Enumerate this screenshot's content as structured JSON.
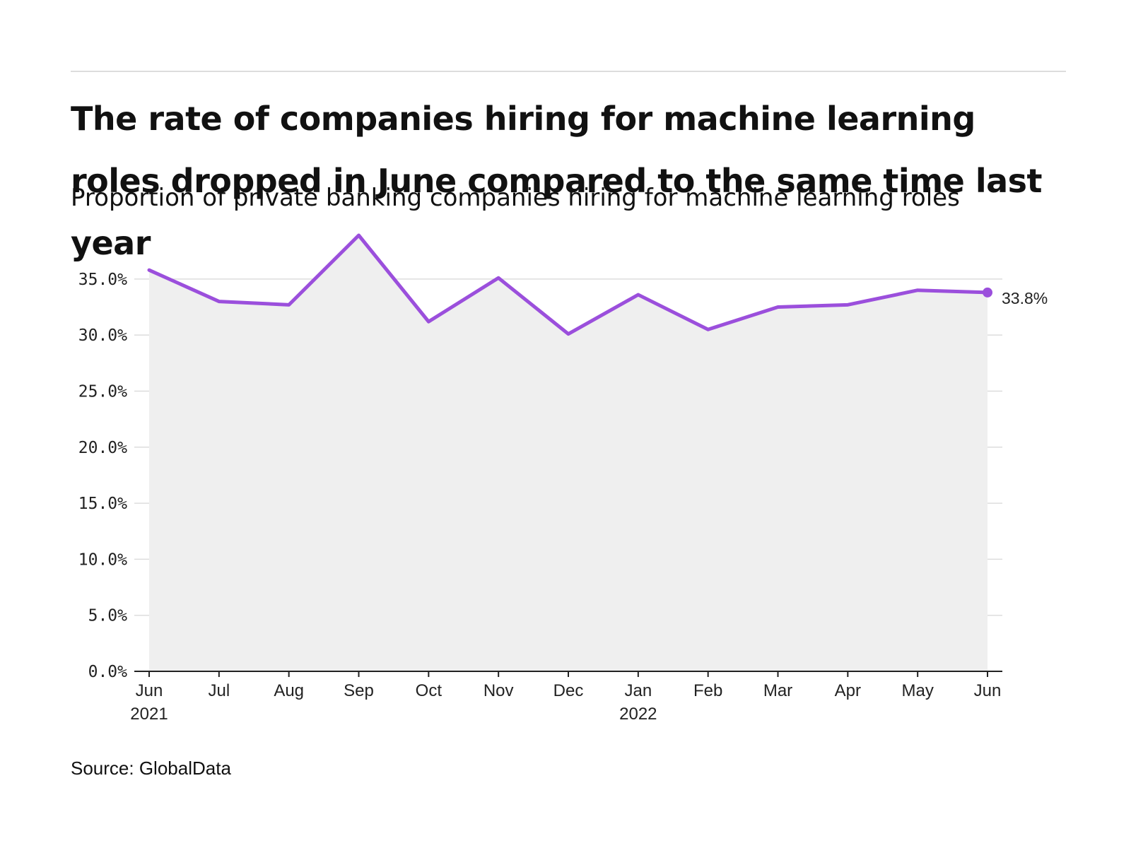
{
  "header": {
    "title": "The rate of companies hiring for machine learning roles dropped in June compared to the same time last year",
    "subtitle": "Proportion of private banking companies hiring for machine learning roles"
  },
  "footer": {
    "source": "Source: GlobalData"
  },
  "colors": {
    "line": "#9b4fdc",
    "area": "#efefef",
    "grid": "#dddddd",
    "axis": "#222222"
  },
  "chart_data": {
    "type": "line",
    "x": [
      "Jun 2021",
      "Jul 2021",
      "Aug 2021",
      "Sep 2021",
      "Oct 2021",
      "Nov 2021",
      "Dec 2021",
      "Jan 2022",
      "Feb 2022",
      "Mar 2022",
      "Apr 2022",
      "May 2022",
      "Jun 2022"
    ],
    "tick_labels": [
      {
        "month": "Jun",
        "year": "2021"
      },
      {
        "month": "Jul",
        "year": ""
      },
      {
        "month": "Aug",
        "year": ""
      },
      {
        "month": "Sep",
        "year": ""
      },
      {
        "month": "Oct",
        "year": ""
      },
      {
        "month": "Nov",
        "year": ""
      },
      {
        "month": "Dec",
        "year": ""
      },
      {
        "month": "Jan",
        "year": "2022"
      },
      {
        "month": "Feb",
        "year": ""
      },
      {
        "month": "Mar",
        "year": ""
      },
      {
        "month": "Apr",
        "year": ""
      },
      {
        "month": "May",
        "year": ""
      },
      {
        "month": "Jun",
        "year": ""
      }
    ],
    "values": [
      35.8,
      33.0,
      32.7,
      38.9,
      31.2,
      35.1,
      30.1,
      33.6,
      30.5,
      32.5,
      32.7,
      34.0,
      33.8
    ],
    "ylim": [
      0,
      38.9
    ],
    "yticks": [
      0,
      5,
      10,
      15,
      20,
      25,
      30,
      35
    ],
    "ytick_labels": [
      "0.0%",
      "5.0%",
      "10.0%",
      "15.0%",
      "20.0%",
      "25.0%",
      "30.0%",
      "35.0%"
    ],
    "end_label": "33.8%",
    "grid": true,
    "area_fill": true
  }
}
